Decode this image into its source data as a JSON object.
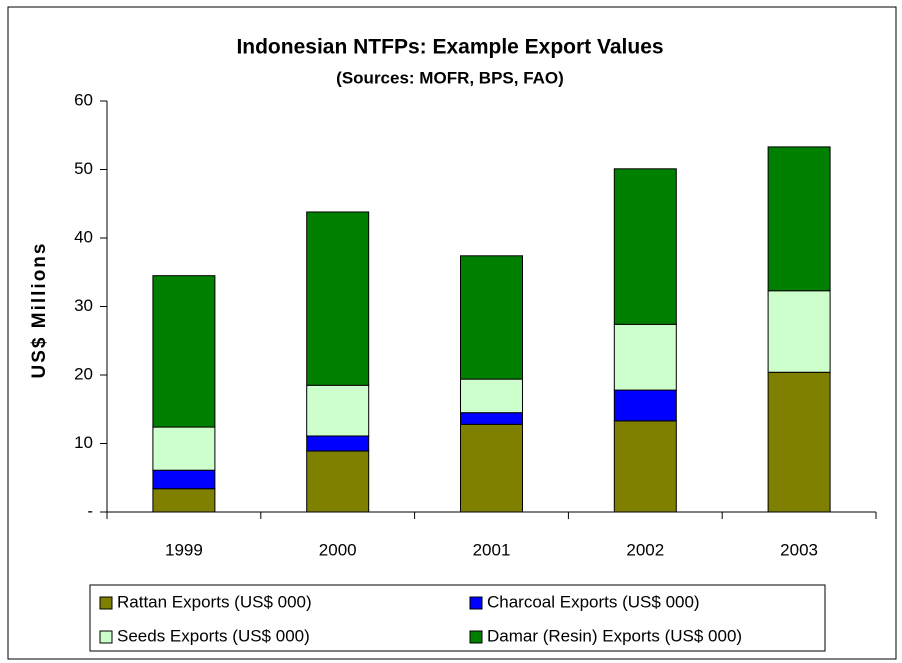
{
  "chart_data": {
    "type": "stacked_bar",
    "title": "Indonesian NTFPs:  Example Export Values",
    "subtitle": "(Sources:  MOFR, BPS, FAO)",
    "y_label": "US$ Millions",
    "categories": [
      "1999",
      "2000",
      "2001",
      "2002",
      "2003"
    ],
    "series": [
      {
        "name": "Rattan Exports (US$ 000)",
        "color": "#808000",
        "values": [
          3.4,
          8.9,
          12.8,
          13.3,
          20.4
        ]
      },
      {
        "name": "Charcoal Exports (US$ 000)",
        "color": "#0000ff",
        "values": [
          2.7,
          2.2,
          1.7,
          4.5,
          0
        ]
      },
      {
        "name": "Seeds Exports (US$ 000)",
        "color": "#ccffcc",
        "values": [
          6.3,
          7.4,
          4.9,
          9.6,
          11.9
        ]
      },
      {
        "name": "Damar (Resin) Exports (US$ 000)",
        "color": "#008000",
        "values": [
          22.1,
          25.3,
          18.0,
          22.7,
          21.0
        ]
      }
    ],
    "ylim": [
      0,
      60
    ],
    "yticks": [
      {
        "value": 0,
        "label": "-"
      },
      10,
      20,
      30,
      40,
      50,
      60
    ],
    "grid": false,
    "legend": "bottom"
  }
}
